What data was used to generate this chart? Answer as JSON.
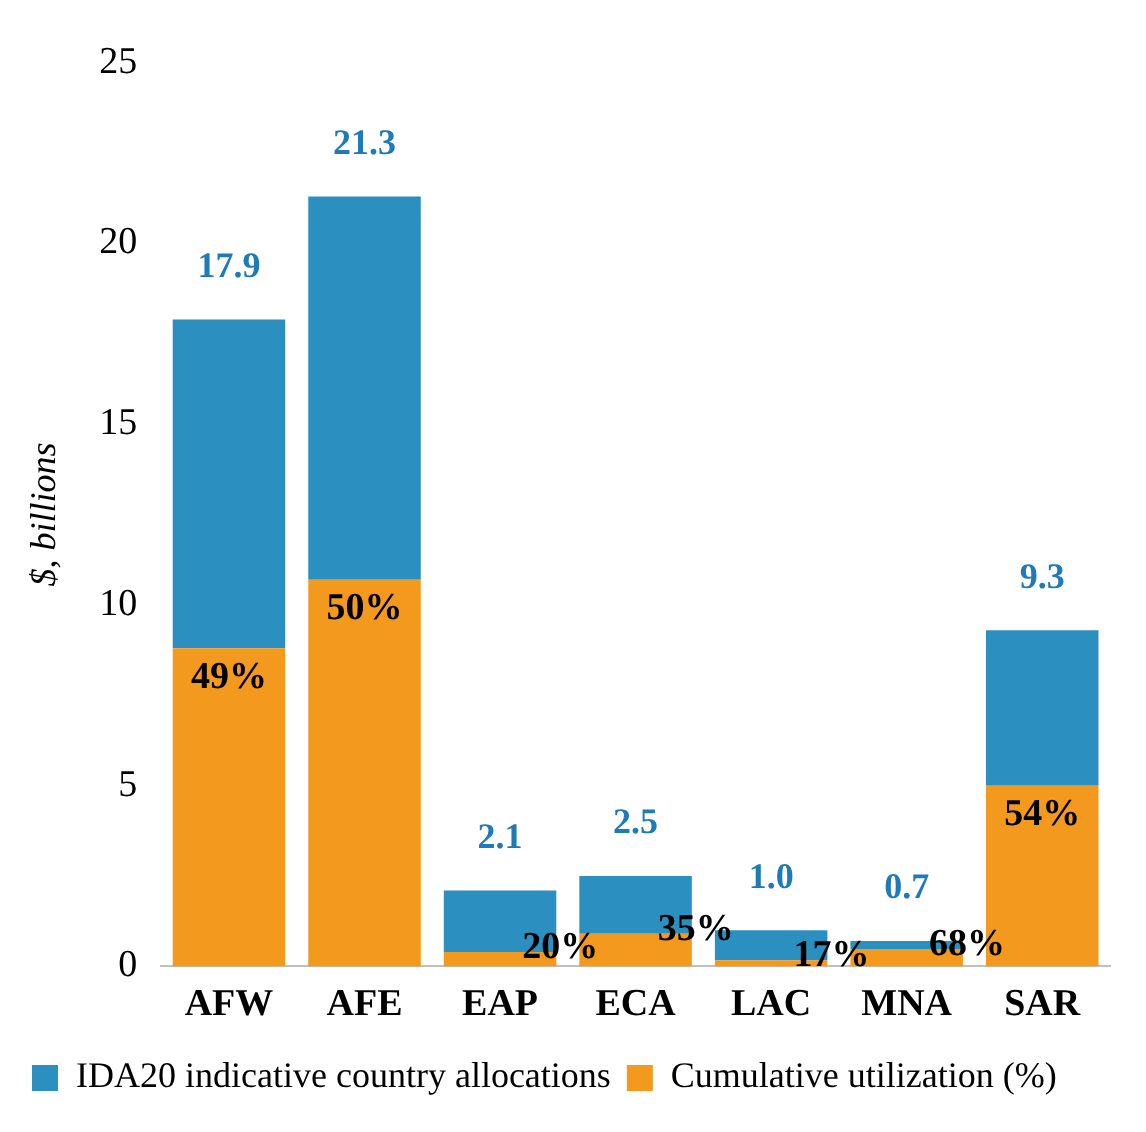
{
  "chart_data": {
    "type": "bar",
    "stacked": true,
    "ylabel": "$, billions",
    "categories": [
      "AFW",
      "AFE",
      "EAP",
      "ECA",
      "LAC",
      "MNA",
      "SAR"
    ],
    "series": [
      {
        "name": "Cumulative utilization (%)",
        "color": "#f39a1e",
        "values": [
          8.8,
          10.7,
          0.4,
          0.9,
          0.17,
          0.48,
          5.0
        ]
      },
      {
        "name": "IDA20 indicative country allocations",
        "color": "#2b8fc0",
        "values": [
          9.1,
          10.6,
          1.7,
          1.6,
          0.83,
          0.22,
          4.3
        ]
      }
    ],
    "annotations": [
      {
        "text": "49%",
        "x": "AFW",
        "y": 8.8
      },
      {
        "text": "50%",
        "x": "AFE",
        "y": 10.7
      },
      {
        "text": "20%",
        "x": "EAP",
        "y": 0.4
      },
      {
        "text": "35%",
        "x": "ECA",
        "y": 0.9
      },
      {
        "text": "17%",
        "x": "LAC",
        "y": 0.17
      },
      {
        "text": "68%",
        "x": "MNA",
        "y": 0.48
      },
      {
        "text": "54%",
        "x": "SAR",
        "y": 5.0
      }
    ],
    "totals": [
      "17.9",
      "21.3",
      "2.1",
      "2.5",
      "1.0",
      "0.7",
      "9.3"
    ],
    "ylim": [
      0,
      25
    ],
    "yticks": [
      0,
      5,
      10,
      15,
      20,
      25
    ],
    "grid": false,
    "legend": "bottom"
  }
}
